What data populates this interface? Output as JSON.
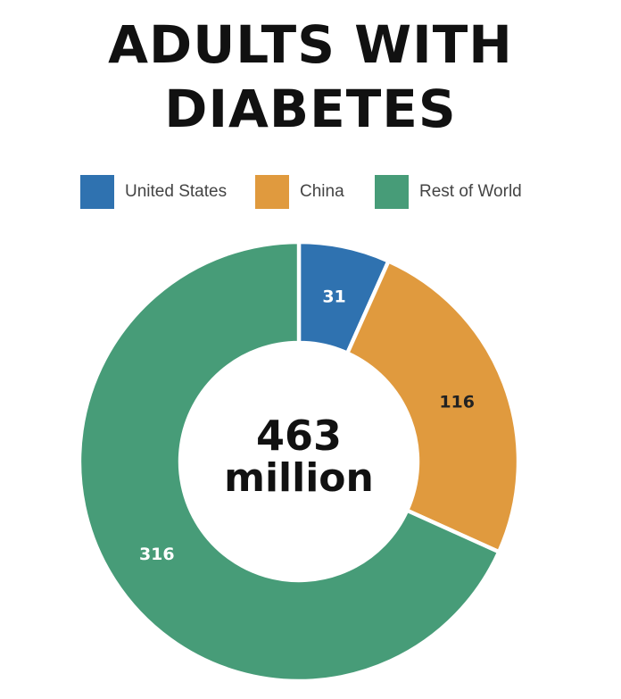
{
  "title_lines": [
    "ADULTS WITH",
    "DIABETES"
  ],
  "center": {
    "value": "463",
    "unit": "million"
  },
  "colors": {
    "united_states": "#2f72b0",
    "china": "#e09a3e",
    "rest_of_world": "#479c78",
    "label_light": "#ffffff",
    "label_dark": "#222222"
  },
  "chart_data": {
    "type": "pie",
    "title": "ADULTS WITH DIABETES",
    "donut": true,
    "legend_position": "top",
    "total_label": "463 million",
    "categories": [
      "United States",
      "China",
      "Rest of World"
    ],
    "values": [
      31,
      116,
      316
    ],
    "labels": [
      "31",
      "116",
      "316"
    ],
    "colors": [
      "#2f72b0",
      "#e09a3e",
      "#479c78"
    ],
    "label_colors": [
      "#ffffff",
      "#222222",
      "#ffffff"
    ]
  }
}
